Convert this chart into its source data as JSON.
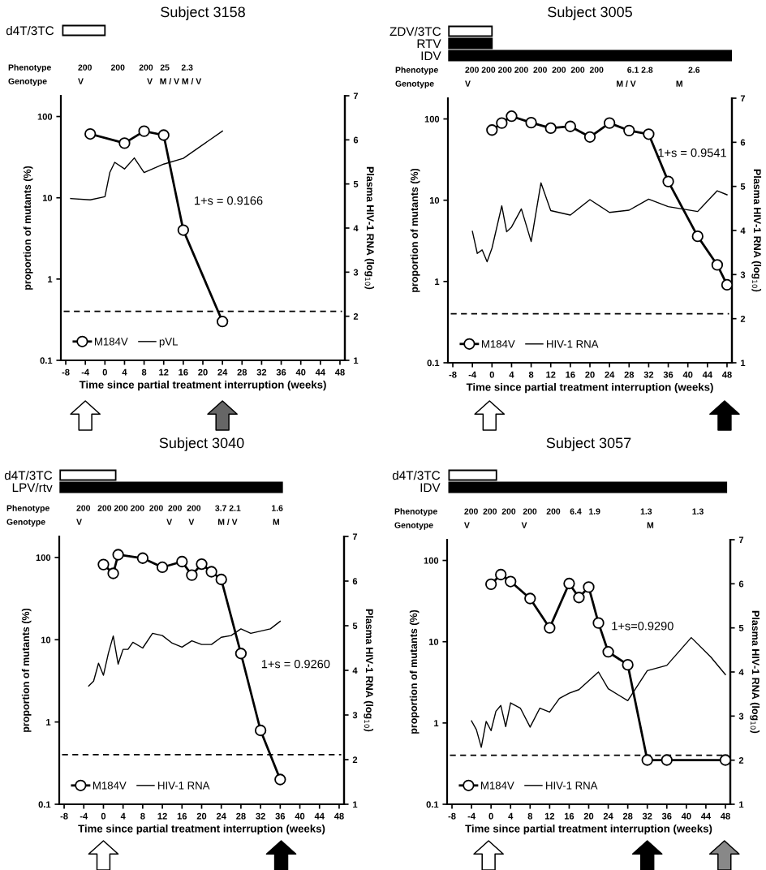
{
  "chart_data": [
    {
      "type": "bar",
      "orientation": "horizontal",
      "categories": [
        "d4T/3TC"
      ],
      "base": [
        -8.6
      ],
      "values": [
        8.6
      ],
      "colors": [
        "#ffffff"
      ],
      "xticks": [
        -8,
        -4,
        0,
        4,
        8,
        12,
        16,
        20,
        24,
        28,
        32,
        36,
        40,
        44,
        48
      ],
      "tick_labels": "y"
    },
    {
      "type": "line",
      "title": "Subject 3158",
      "xlabel": "Time since partial treatment interruption (weeks)",
      "ylabel": "proportion of mutants (%)",
      "y2label": "Plasma HIV-1 RNA (log$_{10}$)",
      "series": [
        {
          "name": "M184V",
          "color": "#000000",
          "marker": "circle",
          "x": [
            -3,
            4,
            8,
            12,
            16,
            24
          ],
          "values": [
            61,
            47,
            66,
            59,
            4.0,
            0.3
          ]
        },
        {
          "name": "pVL",
          "color": "#000000",
          "axis": "y2",
          "x": [
            -7,
            -3,
            0,
            1,
            2,
            4,
            6,
            8,
            12,
            16,
            24
          ],
          "values": [
            4.67,
            4.64,
            4.71,
            5.26,
            5.49,
            5.34,
            5.59,
            5.26,
            5.45,
            5.58,
            6.2
          ]
        }
      ],
      "log": "y",
      "xlim": [
        -9,
        49
      ],
      "xticks": [
        -8,
        -4,
        0,
        4,
        8,
        12,
        16,
        20,
        24,
        28,
        32,
        36,
        40,
        44,
        48
      ],
      "ylim": [
        0.1,
        180
      ],
      "yticks": [
        0.1,
        1,
        10,
        100
      ],
      "y2lim": [
        1,
        7
      ],
      "y2ticks": [
        1,
        2,
        3,
        4,
        5,
        6,
        7
      ],
      "legend": "lower left",
      "ref_lines": [
        {
          "axis": "y",
          "value": 0.4,
          "line_style": "dashed",
          "color": "#000000"
        }
      ],
      "annotations": [
        "1+s = 0.9166",
        "Phenotype",
        "200        200      200   25     2.3",
        "Genotype",
        "V                           V   M / V M / V"
      ]
    },
    {
      "type": "bar",
      "title": "Subject 3005",
      "orientation": "horizontal",
      "categories": [
        "ZDV/3TC",
        "RTV",
        "IDV"
      ],
      "base": [
        -8.8,
        -8.8,
        -8.8
      ],
      "values": [
        8.8,
        8.8,
        57.8
      ],
      "colors": [
        "#ffffff",
        "#000000",
        "#000000"
      ],
      "xticks": [
        -8,
        -4,
        0,
        4,
        8,
        12,
        16,
        20,
        24,
        28,
        32,
        36,
        40,
        44,
        48
      ],
      "tick_labels": "y"
    },
    {
      "type": "line",
      "xlabel": "Time since partial treatment interruption (weeks)",
      "ylabel": "proportion of mutants (%)",
      "y2label": "Plasma HIV-1 RNA (log$_{10}$)",
      "series": [
        {
          "name": "M184V",
          "color": "#000000",
          "marker": "circle",
          "x": [
            0,
            2,
            4,
            8,
            12,
            16,
            20,
            24,
            28,
            32,
            36,
            42,
            46,
            48
          ],
          "values": [
            73,
            89,
            108,
            90,
            77,
            81,
            60,
            89,
            72,
            65,
            17,
            3.6,
            1.6,
            0.91
          ]
        },
        {
          "name": "HIV-1 RNA",
          "color": "#000000",
          "axis": "y2",
          "x": [
            -4,
            -3,
            -2,
            -1,
            0,
            2,
            3,
            4,
            6,
            8,
            10,
            12,
            16,
            20,
            24,
            28,
            32,
            36,
            42,
            46,
            48
          ],
          "values": [
            3.98,
            3.48,
            3.56,
            3.29,
            3.6,
            4.56,
            3.97,
            4.08,
            4.49,
            3.75,
            5.08,
            4.45,
            4.35,
            4.7,
            4.41,
            4.46,
            4.71,
            4.54,
            4.43,
            4.9,
            4.81
          ]
        }
      ],
      "log": "y",
      "xlim": [
        -9,
        49
      ],
      "xticks": [
        -8,
        -4,
        0,
        4,
        8,
        12,
        16,
        20,
        24,
        28,
        32,
        36,
        40,
        44,
        48
      ],
      "ylim": [
        0.1,
        180
      ],
      "yticks": [
        0.1,
        1,
        10,
        100
      ],
      "y2lim": [
        1,
        7
      ],
      "y2ticks": [
        1,
        2,
        3,
        4,
        5,
        6,
        7
      ],
      "legend": "lower left",
      "ref_lines": [
        {
          "axis": "y",
          "value": 0.4,
          "line_style": "dashed",
          "color": "#000000"
        }
      ],
      "annotations": [
        "1+s = 0.9541",
        "Phenotype",
        "200 200 200 200  200  200  200  200          6.1 2.8               2.6",
        "Genotype",
        "V                                                              M / V                 M"
      ]
    },
    {
      "type": "bar",
      "title": "Subject 3040",
      "orientation": "horizontal",
      "categories": [
        "d4T/3TC",
        "LPV/rtv"
      ],
      "base": [
        -8.8,
        -8.8
      ],
      "values": [
        11.3,
        45.2
      ],
      "colors": [
        "#ffffff",
        "#000000"
      ],
      "xticks": [
        -8,
        -4,
        0,
        4,
        8,
        12,
        16,
        20,
        24,
        28,
        32,
        36,
        40,
        44,
        48
      ],
      "tick_labels": "y"
    },
    {
      "type": "line",
      "xlabel": "Time since partial treatment interruption (weeks)",
      "ylabel": "proportion of mutants (%)",
      "y2label": "Plasma HIV-1 RNA (log$_{10}$)",
      "series": [
        {
          "name": "M184V",
          "color": "#000000",
          "marker": "circle",
          "x": [
            0,
            2,
            3,
            8,
            12,
            16,
            18,
            20,
            22,
            24,
            28,
            32,
            36
          ],
          "values": [
            82,
            64,
            108,
            98,
            76,
            89,
            61,
            83,
            67,
            54,
            6.8,
            0.79,
            0.2
          ]
        },
        {
          "name": "HIV-1 RNA",
          "color": "#000000",
          "axis": "y2",
          "x": [
            -3,
            -2,
            -1,
            0,
            1,
            2,
            3,
            4,
            5,
            6,
            8,
            10,
            12,
            14,
            16,
            18,
            20,
            22,
            24,
            26,
            28,
            30,
            32,
            34,
            36
          ],
          "values": [
            3.65,
            3.76,
            4.16,
            3.89,
            4.38,
            4.77,
            4.14,
            4.47,
            4.47,
            4.63,
            4.5,
            4.83,
            4.78,
            4.61,
            4.52,
            4.66,
            4.58,
            4.58,
            4.74,
            4.78,
            4.93,
            4.83,
            4.88,
            4.93,
            5.1
          ]
        }
      ],
      "log": "y",
      "xlim": [
        -9,
        49
      ],
      "xticks": [
        -8,
        -4,
        0,
        4,
        8,
        12,
        16,
        20,
        24,
        28,
        32,
        36,
        40,
        44,
        48
      ],
      "ylim": [
        0.1,
        180
      ],
      "yticks": [
        0.1,
        1,
        10,
        100
      ],
      "y2lim": [
        1,
        7
      ],
      "y2ticks": [
        1,
        2,
        3,
        4,
        5,
        6,
        7
      ],
      "legend": "lower left",
      "ref_lines": [
        {
          "axis": "y",
          "value": 0.4,
          "line_style": "dashed",
          "color": "#000000"
        }
      ],
      "annotations": [
        "1+s = 0.9260",
        "Phenotype",
        "200   200 200 200  200  200  200      3.7 2.1             1.6",
        "Genotype",
        "V                                    V       V          M / V               M"
      ]
    },
    {
      "type": "bar",
      "title": "Subject 3057",
      "orientation": "horizontal",
      "categories": [
        "d4T/3TC",
        "IDV"
      ],
      "base": [
        -8.6,
        -8.6
      ],
      "values": [
        9.7,
        56.8
      ],
      "colors": [
        "#ffffff",
        "#000000"
      ],
      "xticks": [
        -8,
        -4,
        0,
        4,
        8,
        12,
        16,
        20,
        24,
        28,
        32,
        36,
        40,
        44,
        48
      ],
      "tick_labels": "y"
    },
    {
      "type": "line",
      "xlabel": "Time since partial treatment interruption (weeks)",
      "ylabel": "proportion of mutants (%)",
      "y2label": "Plasma HIV-1 RNA (log$_{10}$)",
      "series": [
        {
          "name": "M184V",
          "color": "#000000",
          "marker": "circle",
          "x": [
            0,
            2,
            4,
            8,
            12,
            16,
            18,
            20,
            22,
            24,
            28,
            32,
            36,
            48
          ],
          "values": [
            51,
            67,
            55,
            34,
            14.8,
            52,
            35,
            47,
            17,
            7.5,
            5.2,
            0.35,
            0.35,
            0.35
          ]
        },
        {
          "name": "HIV-1 RNA",
          "color": "#000000",
          "axis": "y2",
          "x": [
            -4,
            -3,
            -2,
            -1,
            0,
            1,
            2,
            3,
            4,
            6,
            8,
            10,
            12,
            14,
            16,
            18,
            22,
            24,
            28,
            32,
            36,
            41,
            45,
            48
          ],
          "values": [
            2.89,
            2.69,
            2.29,
            2.88,
            2.67,
            3.11,
            3.24,
            2.76,
            3.3,
            3.18,
            2.75,
            3.18,
            3.09,
            3.4,
            3.52,
            3.6,
            4.0,
            3.62,
            3.35,
            4.03,
            4.15,
            4.78,
            4.34,
            3.94
          ]
        }
      ],
      "log": "y",
      "xlim": [
        -9,
        49
      ],
      "xticks": [
        -8,
        -4,
        0,
        4,
        8,
        12,
        16,
        20,
        24,
        28,
        32,
        36,
        40,
        44,
        48
      ],
      "ylim": [
        0.1,
        180
      ],
      "yticks": [
        0.1,
        1,
        10,
        100
      ],
      "y2lim": [
        1,
        7
      ],
      "y2ticks": [
        1,
        2,
        3,
        4,
        5,
        6,
        7
      ],
      "legend": "lower left",
      "ref_lines": [
        {
          "axis": "y",
          "value": 0.4,
          "line_style": "dashed",
          "color": "#000000"
        }
      ],
      "annotations": [
        "1+s=0.9290",
        "Phenotype",
        "200  200  200   200    200    6.4   1.9                 1.3                 1.3",
        "Genotype",
        "V                      V                                                   M"
      ]
    }
  ]
}
